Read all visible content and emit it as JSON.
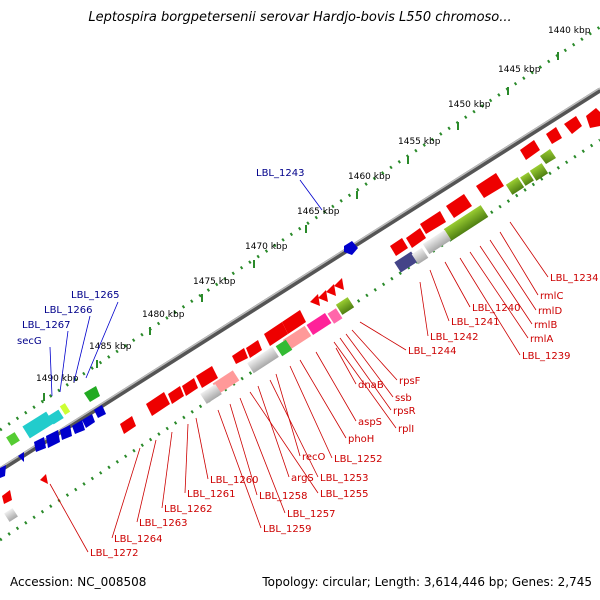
{
  "title": "Leptospira borgpetersenii serovar Hardjo-bovis L550 chromoso...",
  "footer": {
    "accession": "Accession: NC_008508",
    "summary": "Topology: circular; Length: 3,614,446 bp; Genes: 2,745"
  },
  "scale_labels": [
    "1440 kbp",
    "1445 kbp",
    "1450 kbp",
    "1455 kbp",
    "1460 kbp",
    "1465 kbp",
    "1470 kbp",
    "1475 kbp",
    "1480 kbp",
    "1485 kbp",
    "1490 kbp"
  ],
  "blue_labels": [
    "LBL_1243",
    "LBL_1265",
    "LBL_1266",
    "LBL_1267",
    "secG"
  ],
  "red_labels": [
    "LBL_1234",
    "rmlC",
    "rmlD",
    "rmlB",
    "rmlA",
    "LBL_1239",
    "LBL_1240",
    "LBL_1241",
    "LBL_1242",
    "LBL_1244",
    "rpsF",
    "ssb",
    "rpsR",
    "rplI",
    "dnaB",
    "aspS",
    "phoH",
    "LBL_1252",
    "recO",
    "LBL_1253",
    "argS",
    "LBL_1255",
    "LBL_1257",
    "LBL_1258",
    "LBL_1259",
    "LBL_1260",
    "LBL_1261",
    "LBL_1262",
    "LBL_1263",
    "LBL_1264",
    "LBL_1272"
  ],
  "colors": {
    "forward_gene": "#0000cc",
    "reverse_gene": "#ee0000",
    "backbone": "#8a8a8a",
    "scale_tick": "#2a8a2a",
    "label_blue": "#00008b",
    "label_red": "#cc0000"
  }
}
